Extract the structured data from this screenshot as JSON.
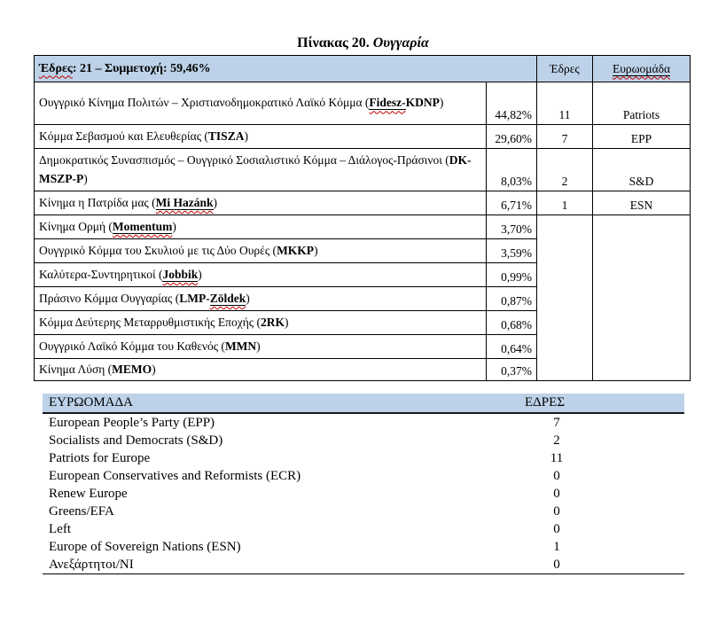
{
  "title": {
    "label": "Πίνακας 20.",
    "country": "Ουγγαρία"
  },
  "results_table": {
    "summary": {
      "word": "Έδρες",
      "rest": ": 21 – Συμμετοχή: 59,46%"
    },
    "col_seats": "Έδρες",
    "col_group": "Ευρωομάδα",
    "rows": [
      {
        "name": "Ουγγρικό Κίνημα Πολιτών – Χριστιανοδημοκρατικό Λαϊκό Κόμμα",
        "abbr_pre": "",
        "abbr_marked": "Fidesz-",
        "abbr_post": "KDNP",
        "pct": "44,82%",
        "seats": "11",
        "group": "Patriots",
        "tall": true
      },
      {
        "name": "Κόμμα Σεβασμού και Ελευθερίας",
        "abbr_pre": "TISZA",
        "abbr_marked": "",
        "abbr_post": "",
        "pct": "29,60%",
        "seats": "7",
        "group": "EPP",
        "tall": false
      },
      {
        "name": "Δημοκρατικός Συνασπισμός – Ουγγρικό Σοσιαλιστικό Κόμμα – Διάλογος-Πράσινοι",
        "abbr_pre": "DK-MSZP-P",
        "abbr_marked": "",
        "abbr_post": "",
        "pct": "8,03%",
        "seats": "2",
        "group": "S&D",
        "tall": true
      },
      {
        "name": "Κίνημα η Πατρίδα μας",
        "abbr_pre": "",
        "abbr_marked": "Mi Hazánk",
        "abbr_post": "",
        "pct": "6,71%",
        "seats": "1",
        "group": "ESN",
        "tall": false
      },
      {
        "name": "Κίνημα Ορμή",
        "abbr_pre": "",
        "abbr_marked": "Momentum",
        "abbr_post": "",
        "pct": "3,70%",
        "seats": "",
        "group": "",
        "tall": false
      },
      {
        "name": "Ουγγρικό Κόμμα του Σκυλιού με τις Δύο Ουρές",
        "abbr_pre": "MKKP",
        "abbr_marked": "",
        "abbr_post": "",
        "pct": "3,59%",
        "seats": "",
        "group": "",
        "tall": false
      },
      {
        "name": "Καλύτερα-Συντηρητικοί",
        "abbr_pre": "",
        "abbr_marked": "Jobbik",
        "abbr_post": "",
        "pct": "0,99%",
        "seats": "",
        "group": "",
        "tall": false
      },
      {
        "name": "Πράσινο Κόμμα Ουγγαρίας",
        "abbr_pre": "LMP-",
        "abbr_marked": "Zöldek",
        "abbr_post": "",
        "pct": "0,87%",
        "seats": "",
        "group": "",
        "tall": false
      },
      {
        "name": "Κόμμα Δεύτερης Μεταρρυθμιστικής Εποχής",
        "abbr_pre": "2RK",
        "abbr_marked": "",
        "abbr_post": "",
        "pct": "0,68%",
        "seats": "",
        "group": "",
        "tall": false
      },
      {
        "name": "Ουγγρικό Λαϊκό Κόμμα του Καθενός",
        "abbr_pre": "MMN",
        "abbr_marked": "",
        "abbr_post": "",
        "pct": "0,64%",
        "seats": "",
        "group": "",
        "tall": false
      },
      {
        "name": "Κίνημα Λύση",
        "abbr_pre": "MEMO",
        "abbr_marked": "",
        "abbr_post": "",
        "pct": "0,37%",
        "seats": "",
        "group": "",
        "tall": false,
        "short": true
      }
    ],
    "merged_empty_from_row": 4,
    "merged_empty_span": 7
  },
  "groups_table": {
    "col_group": "ΕΥΡΩΟΜΑΔΑ",
    "col_seats": "ΕΔΡΕΣ",
    "rows": [
      {
        "group": "European People’s Party (EPP)",
        "seats": "7"
      },
      {
        "group": "Socialists and Democrats (S&D)",
        "seats": "2"
      },
      {
        "group": "Patriots for Europe",
        "seats": "11"
      },
      {
        "group": "European Conservatives and Reformists (ECR)",
        "seats": "0"
      },
      {
        "group": "Renew Europe",
        "seats": "0"
      },
      {
        "group": "Greens/EFA",
        "seats": "0"
      },
      {
        "group": "Left",
        "seats": "0"
      },
      {
        "group": "Europe of Sovereign Nations (ESN)",
        "seats": "1"
      },
      {
        "group": "Ανεξάρτητοι/NI",
        "seats": "0"
      }
    ]
  },
  "colors": {
    "header_fill": "#bdd2e8",
    "squiggle_red": "#c00000",
    "border": "#000000"
  }
}
